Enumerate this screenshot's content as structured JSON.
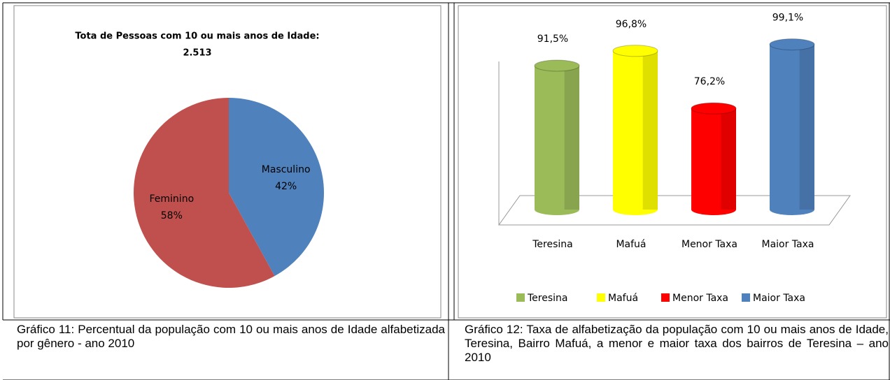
{
  "chart_data": [
    {
      "type": "pie",
      "title": "Tota de Pessoas com 10 ou mais anos de Idade:",
      "subtitle": "2.513",
      "categories": [
        "Masculino",
        "Feminino"
      ],
      "values": [
        42,
        58
      ],
      "value_labels": [
        "42%",
        "58%"
      ],
      "colors": [
        "#4f81bd",
        "#c0504d"
      ],
      "caption": "Gráfico 11: Percentual da população com 10 ou mais anos de Idade alfabetizada por gênero - ano 2010"
    },
    {
      "type": "bar",
      "categories": [
        "Teresina",
        "Mafuá",
        "Menor Taxa",
        "Maior Taxa"
      ],
      "values": [
        91.5,
        96.8,
        76.2,
        99.1
      ],
      "value_labels": [
        "91,5%",
        "96,8%",
        "76,2%",
        "99,1%"
      ],
      "colors": [
        "#9bbb59",
        "#ffff00",
        "#ff0000",
        "#4f81bd"
      ],
      "ylim": [
        40,
        100
      ],
      "legend": "bottom",
      "caption": "Gráfico 12: Taxa de alfabetização da população com 10 ou mais anos de Idade, Teresina, Bairro Mafuá, a menor e maior taxa dos bairros de Teresina – ano 2010"
    }
  ]
}
